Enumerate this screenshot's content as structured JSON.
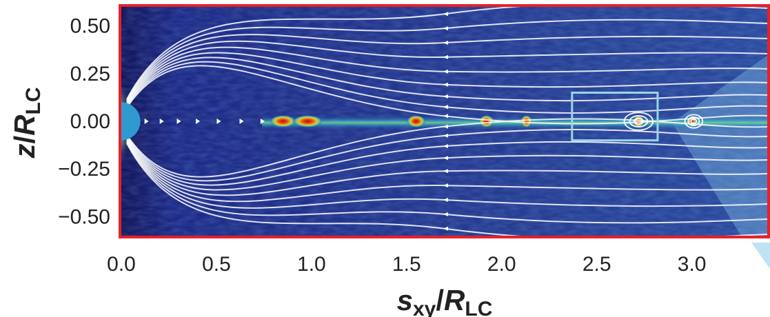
{
  "chart_data": {
    "type": "heatmap",
    "title": "",
    "xlabel": {
      "main": "s",
      "main_sub": "xy",
      "denom": "R",
      "denom_sub": "LC"
    },
    "ylabel": {
      "main": "z",
      "denom": "R",
      "denom_sub": "LC"
    },
    "xlim": [
      0.0,
      3.4
    ],
    "ylim": [
      -0.6,
      0.6
    ],
    "x_ticks": [
      0.0,
      0.5,
      1.0,
      1.5,
      2.0,
      2.5,
      3.0
    ],
    "x_tick_labels": [
      "0.0",
      "0.5",
      "1.0",
      "1.5",
      "2.0",
      "2.5",
      "3.0"
    ],
    "y_ticks": [
      0.5,
      0.25,
      0.0,
      -0.25,
      -0.5
    ],
    "y_tick_labels": [
      "0.50",
      "0.25",
      "0.00",
      "−0.25",
      "−0.50"
    ],
    "grid": false,
    "colors": {
      "frame": "#e8202a",
      "inset_box": "#9ad6e6",
      "star": "#2e9ad0",
      "field_lines": "#ffffff",
      "background_field": "#24358f",
      "current_sheet": "#c81e14"
    },
    "star_radius": 0.1,
    "current_sheet_blobs": [
      {
        "x": 0.85,
        "w": 0.07
      },
      {
        "x": 0.98,
        "w": 0.08
      },
      {
        "x": 1.55,
        "w": 0.05
      },
      {
        "x": 1.92,
        "w": 0.04
      },
      {
        "x": 2.13,
        "w": 0.03
      },
      {
        "x": 2.72,
        "w": 0.03
      },
      {
        "x": 3.0,
        "w": 0.02
      }
    ],
    "inset_box": {
      "x0": 2.37,
      "x1": 2.82,
      "y0": -0.1,
      "y1": 0.15
    },
    "plasmoids": [
      {
        "x": 2.72,
        "y": 0.0
      },
      {
        "x": 3.01,
        "y": 0.0
      }
    ]
  }
}
